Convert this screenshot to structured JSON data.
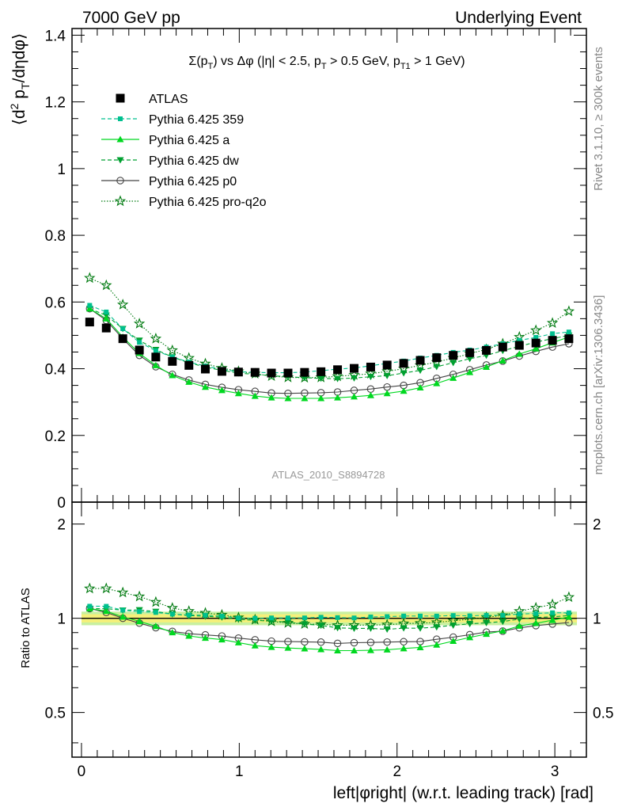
{
  "header": {
    "left": "7000 GeV pp",
    "right": "Underlying Event"
  },
  "side": {
    "rivet": "Rivet 3.1.10, ≥ 300k events",
    "mcplots": "mcplots.cern.ch [arXiv:1306.3436]"
  },
  "plot_title": "Σ(p_T) vs Δφ (|η| < 2.5, p_T > 0.5 GeV, p_T1 > 1 GeV)",
  "watermark": "ATLAS_2010_S8894728",
  "colors": {
    "atlas": "#000000",
    "p359": "#00c08f",
    "pa": "#00d820",
    "pdw": "#00a030",
    "pp0": "#444444",
    "pq2o": "#007a10",
    "band_inner": "#f5f07a",
    "band_outer": "#c8f0a0"
  },
  "chart_data": [
    {
      "type": "scatter",
      "title": "Σ(p_T) vs Δφ (|η| < 2.5, p_T > 0.5 GeV, p_T1 > 1 GeV)",
      "ylabel": "⟨d² p_T/dηdφ⟩",
      "xlabel": "",
      "xlim": [
        -0.06,
        3.2
      ],
      "ylim": [
        0,
        1.42
      ],
      "yticks": [
        "0",
        "0.2",
        "0.4",
        "0.6",
        "0.8",
        "1",
        "1.2",
        "1.4"
      ],
      "legend_position": "top-left",
      "x": [
        0.052,
        0.157,
        0.262,
        0.367,
        0.471,
        0.576,
        0.681,
        0.785,
        0.89,
        0.995,
        1.1,
        1.204,
        1.309,
        1.414,
        1.518,
        1.623,
        1.728,
        1.833,
        1.937,
        2.042,
        2.147,
        2.251,
        2.356,
        2.461,
        2.566,
        2.67,
        2.775,
        2.88,
        2.985,
        3.089
      ],
      "series": [
        {
          "name": "ATLAS",
          "key": "atlas",
          "values": [
            0.54,
            0.522,
            0.49,
            0.456,
            0.435,
            0.422,
            0.41,
            0.399,
            0.392,
            0.39,
            0.389,
            0.387,
            0.387,
            0.389,
            0.391,
            0.397,
            0.401,
            0.405,
            0.411,
            0.416,
            0.425,
            0.433,
            0.44,
            0.448,
            0.455,
            0.465,
            0.47,
            0.477,
            0.485,
            0.49
          ]
        },
        {
          "name": "Pythia 6.425 359",
          "key": "p359",
          "values": [
            0.59,
            0.57,
            0.52,
            0.479,
            0.454,
            0.435,
            0.42,
            0.408,
            0.398,
            0.391,
            0.389,
            0.388,
            0.388,
            0.39,
            0.394,
            0.399,
            0.402,
            0.409,
            0.416,
            0.423,
            0.432,
            0.44,
            0.449,
            0.456,
            0.465,
            0.475,
            0.485,
            0.494,
            0.505,
            0.51
          ]
        },
        {
          "name": "Pythia 6.425 a",
          "key": "pa",
          "values": [
            0.58,
            0.55,
            0.495,
            0.446,
            0.41,
            0.38,
            0.36,
            0.345,
            0.335,
            0.326,
            0.318,
            0.313,
            0.311,
            0.311,
            0.311,
            0.313,
            0.316,
            0.32,
            0.326,
            0.333,
            0.343,
            0.356,
            0.372,
            0.389,
            0.405,
            0.424,
            0.444,
            0.46,
            0.478,
            0.495
          ]
        },
        {
          "name": "Pythia 6.425 dw",
          "key": "pdw",
          "values": [
            0.58,
            0.56,
            0.52,
            0.485,
            0.457,
            0.435,
            0.418,
            0.405,
            0.395,
            0.387,
            0.383,
            0.379,
            0.376,
            0.373,
            0.371,
            0.37,
            0.372,
            0.376,
            0.379,
            0.387,
            0.395,
            0.406,
            0.418,
            0.43,
            0.44,
            0.454,
            0.467,
            0.48,
            0.49,
            0.5
          ]
        },
        {
          "name": "Pythia 6.425 p0",
          "key": "pp0",
          "values": [
            0.58,
            0.545,
            0.49,
            0.44,
            0.406,
            0.383,
            0.366,
            0.353,
            0.344,
            0.337,
            0.332,
            0.327,
            0.326,
            0.327,
            0.328,
            0.33,
            0.335,
            0.339,
            0.345,
            0.35,
            0.358,
            0.371,
            0.383,
            0.397,
            0.411,
            0.423,
            0.438,
            0.452,
            0.465,
            0.475
          ]
        },
        {
          "name": "Pythia 6.425 pro-q2o",
          "key": "pq2o",
          "values": [
            0.672,
            0.65,
            0.592,
            0.535,
            0.49,
            0.455,
            0.432,
            0.415,
            0.402,
            0.392,
            0.385,
            0.378,
            0.374,
            0.373,
            0.374,
            0.377,
            0.381,
            0.385,
            0.392,
            0.4,
            0.41,
            0.42,
            0.432,
            0.445,
            0.458,
            0.475,
            0.495,
            0.515,
            0.537,
            0.572
          ]
        }
      ]
    },
    {
      "type": "scatter",
      "title": "",
      "ylabel": "Ratio to ATLAS",
      "xlabel": "left|φright| (w.r.t. leading track) [rad]",
      "xlim": [
        -0.06,
        3.2
      ],
      "xticks": [
        "0",
        "1",
        "2",
        "3"
      ],
      "ylim": [
        0.36,
        2.35
      ],
      "yscale": "log",
      "yticks": [
        "0.5",
        "1",
        "2"
      ],
      "band": {
        "inner": [
          0.97,
          1.03
        ],
        "outer": [
          0.95,
          1.05
        ]
      }
    }
  ]
}
